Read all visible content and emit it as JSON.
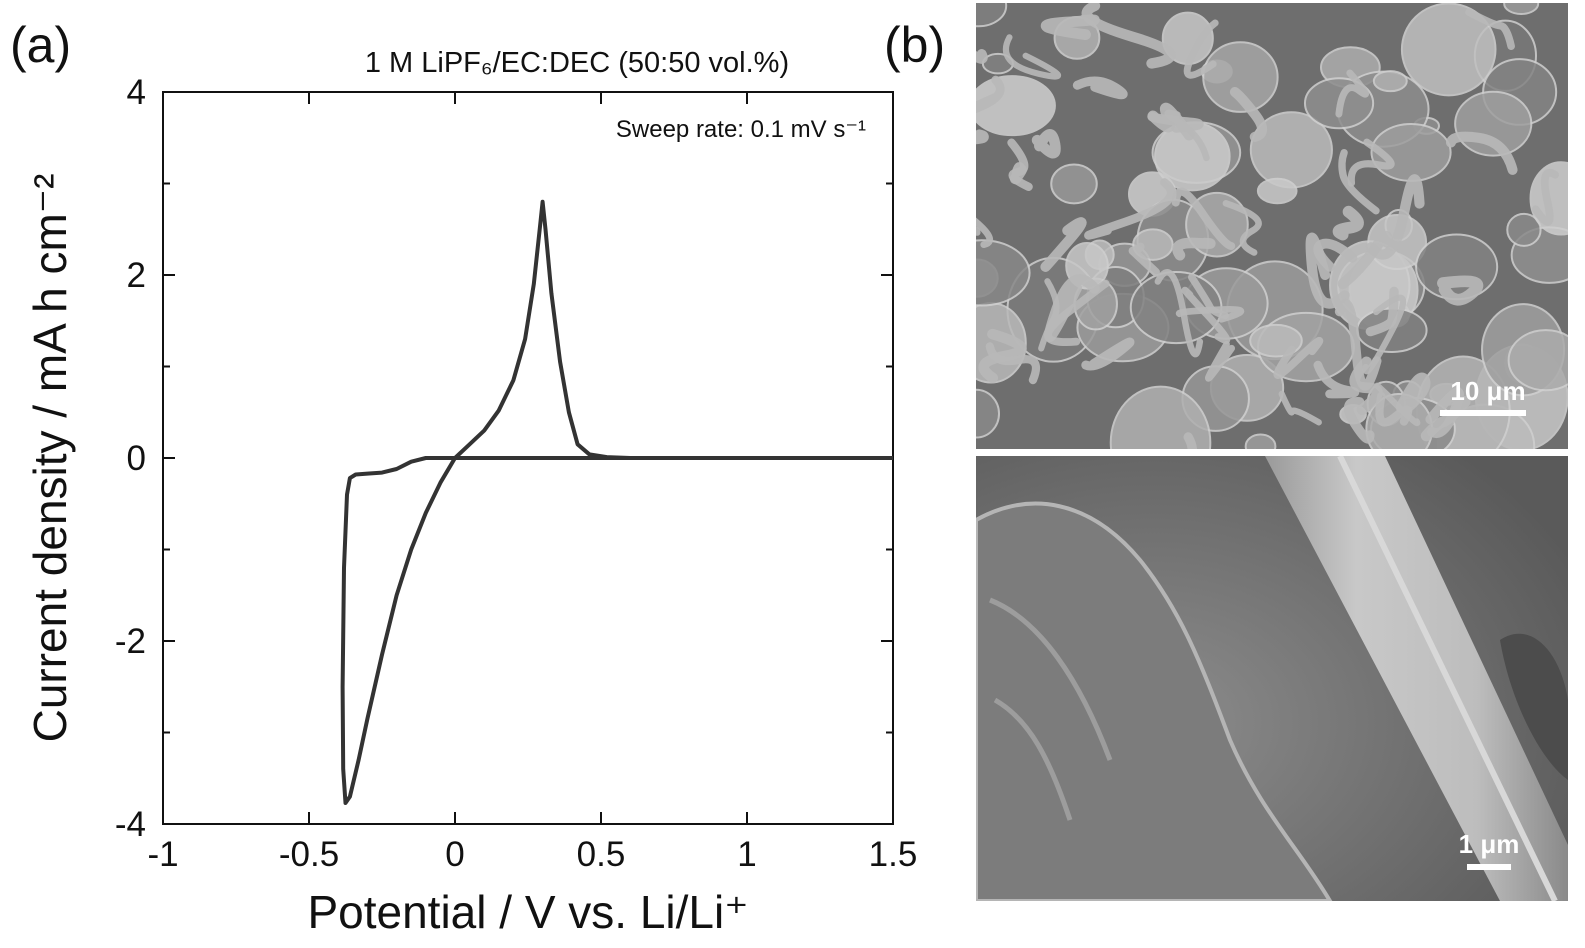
{
  "panel_labels": [
    "(a)",
    "(b)"
  ],
  "chart_data": {
    "type": "line",
    "title": "1 M LiPF₆/EC:DEC (50:50 vol.%)",
    "annotation": "Sweep rate: 0.1 mV s⁻¹",
    "x_label": "Potential / V vs. Li/Li⁺",
    "y_label": "Current density / mA h cm⁻²",
    "x": [
      1.5,
      0.6,
      0.3,
      0.0,
      -0.1,
      -0.15,
      -0.2,
      -0.25,
      -0.3,
      -0.34,
      -0.36,
      -0.37,
      -0.38,
      -0.385,
      -0.383,
      -0.375,
      -0.36,
      -0.33,
      -0.3,
      -0.25,
      -0.2,
      -0.15,
      -0.1,
      -0.05,
      0.0,
      0.05,
      0.1,
      0.15,
      0.2,
      0.24,
      0.27,
      0.29,
      0.3,
      0.31,
      0.33,
      0.36,
      0.39,
      0.42,
      0.46,
      0.52,
      0.6,
      1.0,
      1.5
    ],
    "series": [
      {
        "color": "#333333",
        "values": [
          0.0,
          0.0,
          0.0,
          0.0,
          0.0,
          -0.04,
          -0.12,
          -0.16,
          -0.17,
          -0.18,
          -0.22,
          -0.4,
          -1.2,
          -2.5,
          -3.4,
          -3.77,
          -3.7,
          -3.3,
          -2.85,
          -2.15,
          -1.5,
          -1.0,
          -0.6,
          -0.27,
          0.0,
          0.15,
          0.3,
          0.52,
          0.85,
          1.3,
          1.9,
          2.5,
          2.8,
          2.5,
          1.8,
          1.05,
          0.5,
          0.15,
          0.04,
          0.01,
          0.0,
          0.0,
          0.0
        ]
      }
    ],
    "xlim": [
      -1,
      1.5
    ],
    "xticks": [
      -1,
      -0.5,
      0,
      0.5,
      1,
      1.5
    ],
    "ylim": [
      -4,
      4
    ],
    "yticks": [
      -4,
      -2,
      0,
      2,
      4
    ],
    "yminorticks": [
      -3,
      -1,
      1,
      3
    ]
  },
  "images": [
    {
      "scale_bar": "10 μm"
    },
    {
      "scale_bar": "1 μm"
    }
  ]
}
